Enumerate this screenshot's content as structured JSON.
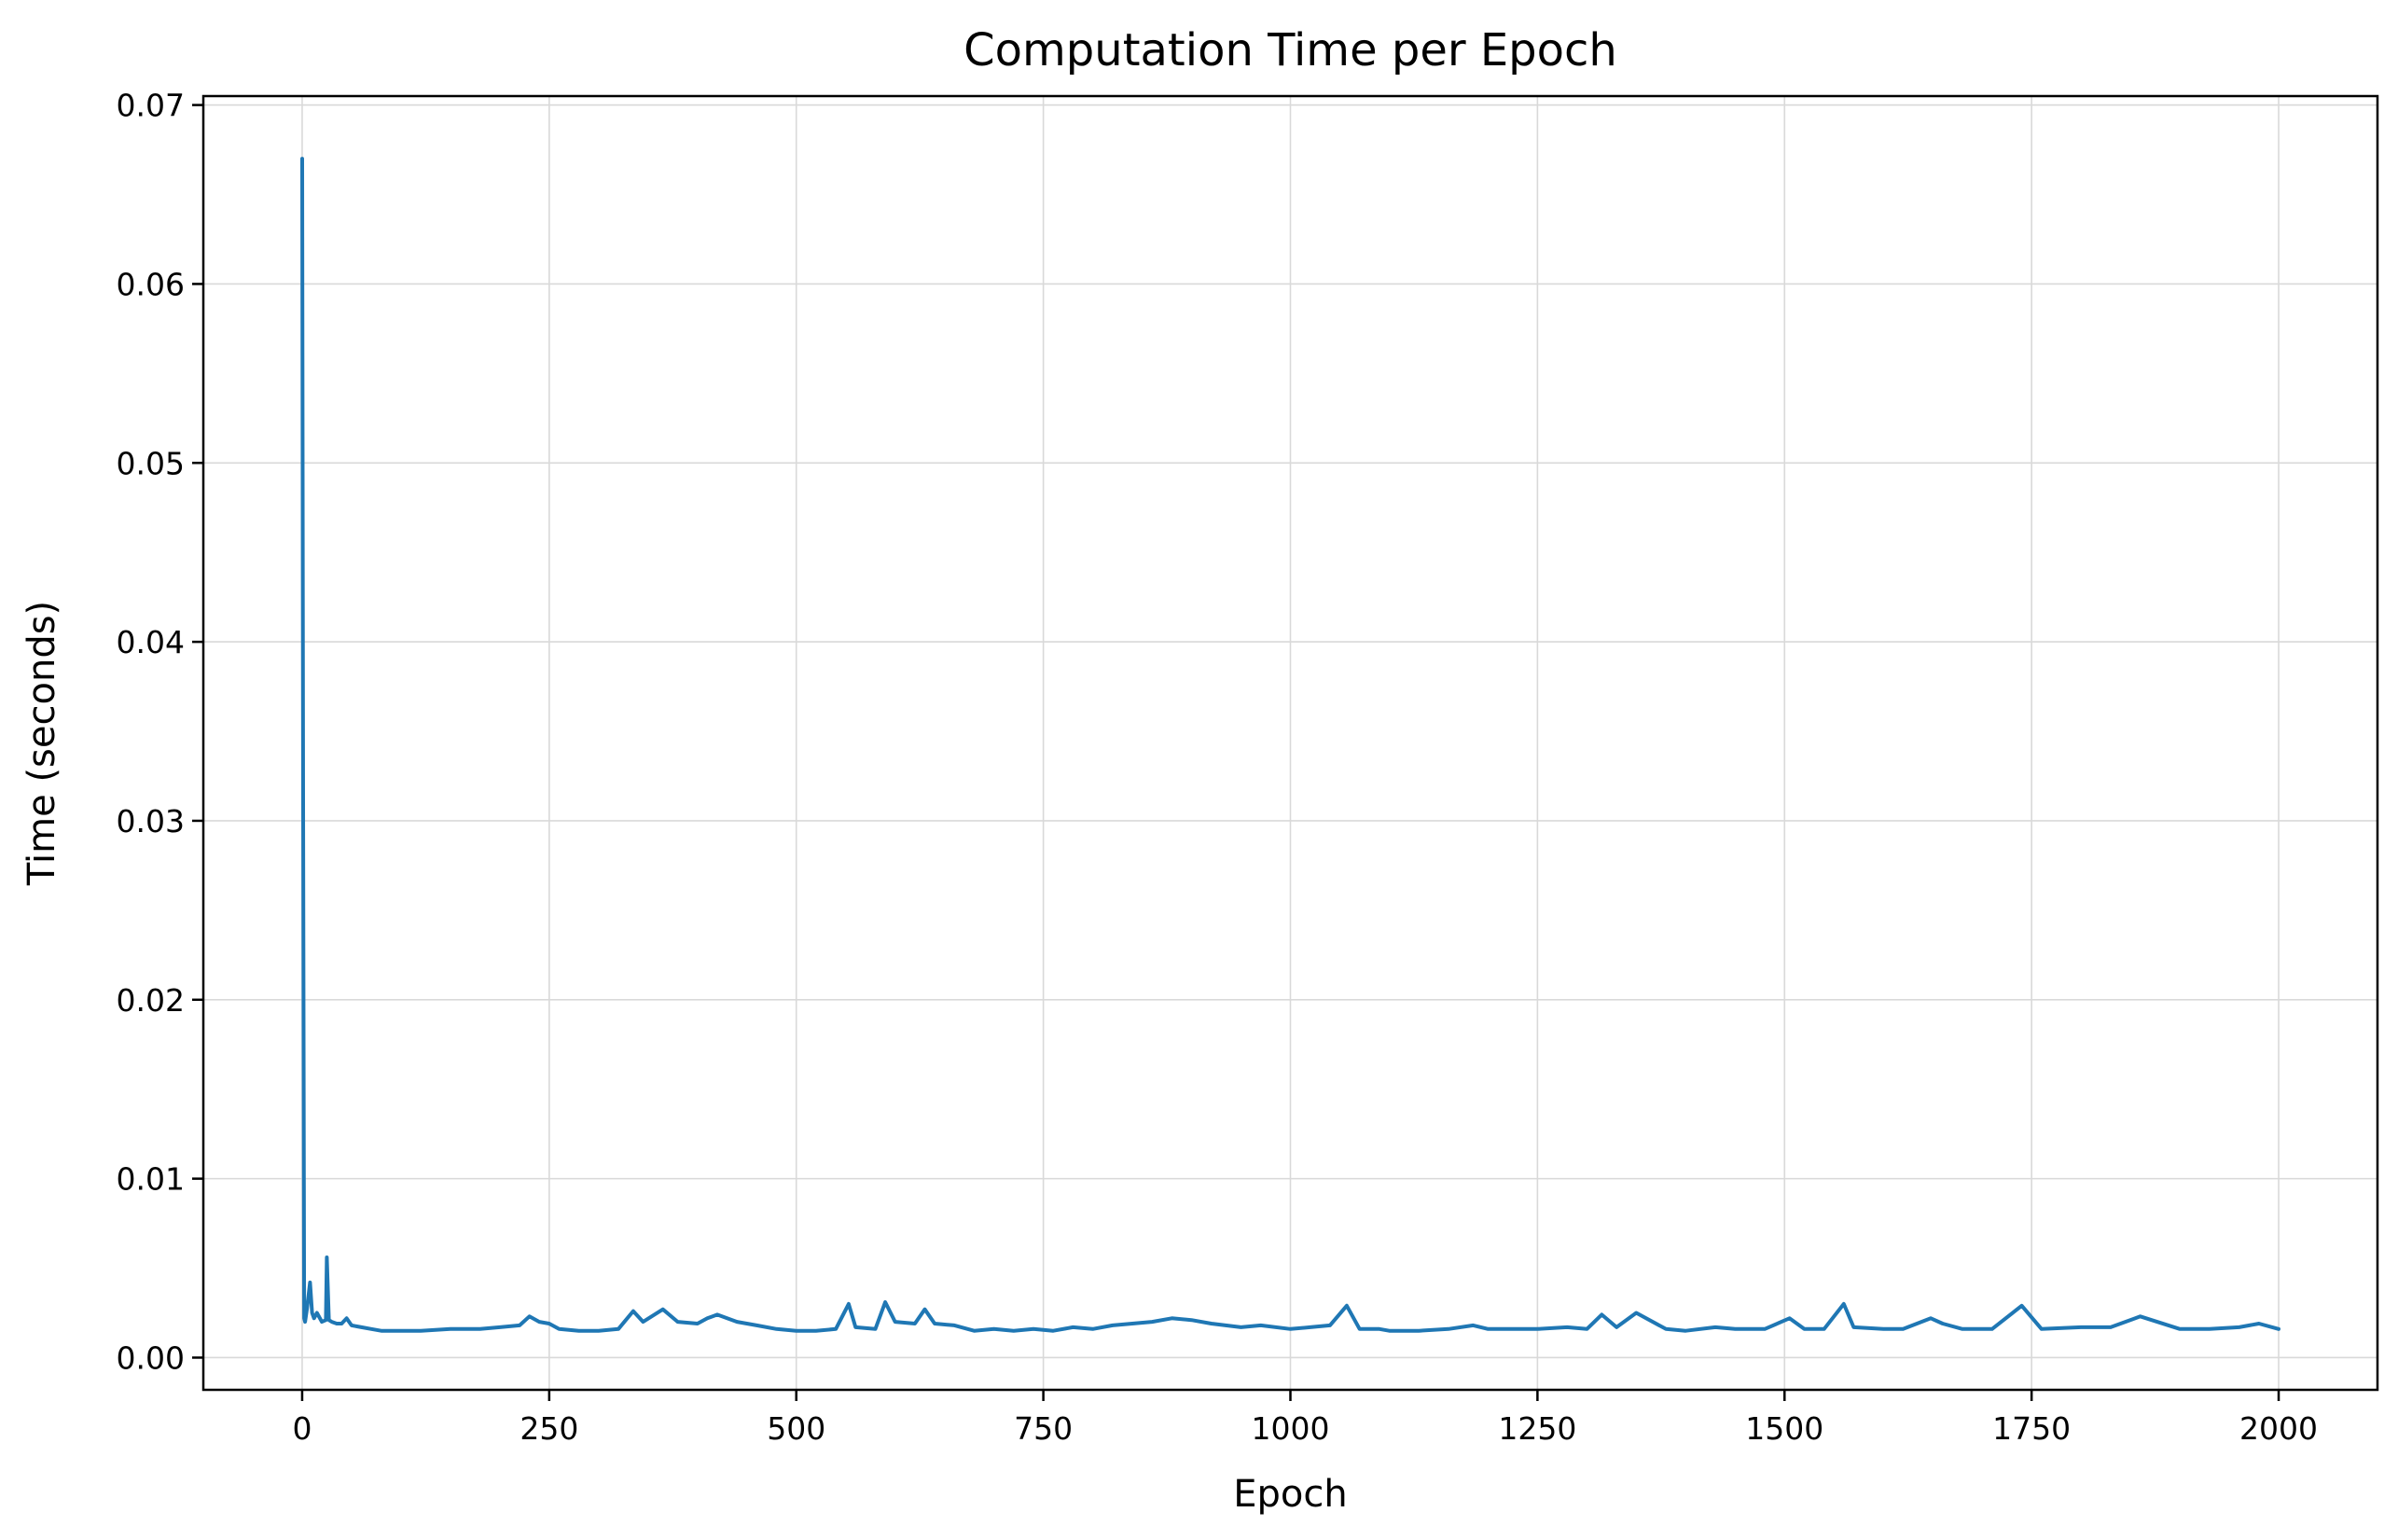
{
  "chart_data": {
    "type": "line",
    "title": "Computation Time per Epoch",
    "xlabel": "Epoch",
    "ylabel": "Time (seconds)",
    "xlim": [
      -100,
      2100
    ],
    "ylim": [
      -0.0018,
      0.0705
    ],
    "xticks": [
      0,
      250,
      500,
      750,
      1000,
      1250,
      1500,
      1750,
      2000
    ],
    "xtick_labels": [
      "0",
      "250",
      "500",
      "750",
      "1000",
      "1250",
      "1500",
      "1750",
      "2000"
    ],
    "yticks": [
      0.0,
      0.01,
      0.02,
      0.03,
      0.04,
      0.05,
      0.06,
      0.07
    ],
    "ytick_labels": [
      "0.00",
      "0.01",
      "0.02",
      "0.03",
      "0.04",
      "0.05",
      "0.06",
      "0.07"
    ],
    "grid": true,
    "line_color": "#1f77b4",
    "series": [
      {
        "x": [
          0,
          1,
          2,
          3,
          5,
          8,
          10,
          12,
          15,
          20,
          24,
          25,
          27,
          30,
          35,
          40,
          45,
          50,
          60,
          70,
          80,
          100,
          120,
          150,
          180,
          200,
          220,
          230,
          240,
          250,
          260,
          280,
          300,
          320,
          335,
          345,
          365,
          380,
          400,
          410,
          420,
          440,
          460,
          480,
          500,
          520,
          540,
          553,
          560,
          580,
          590,
          600,
          620,
          630,
          640,
          660,
          680,
          700,
          720,
          740,
          760,
          780,
          800,
          820,
          840,
          860,
          880,
          900,
          920,
          950,
          970,
          1000,
          1020,
          1040,
          1057,
          1070,
          1090,
          1100,
          1130,
          1160,
          1185,
          1200,
          1230,
          1250,
          1280,
          1300,
          1315,
          1330,
          1350,
          1380,
          1400,
          1430,
          1450,
          1480,
          1505,
          1520,
          1540,
          1560,
          1570,
          1600,
          1620,
          1648,
          1660,
          1680,
          1710,
          1740,
          1760,
          1800,
          1830,
          1860,
          1900,
          1930,
          1960,
          1980,
          2000
        ],
        "y": [
          0.067,
          0.031,
          0.0022,
          0.002,
          0.0028,
          0.0042,
          0.0025,
          0.0022,
          0.0025,
          0.002,
          0.0021,
          0.0056,
          0.0021,
          0.002,
          0.0019,
          0.0019,
          0.0022,
          0.0018,
          0.0017,
          0.0016,
          0.0015,
          0.0015,
          0.0015,
          0.0016,
          0.0016,
          0.0017,
          0.0018,
          0.0023,
          0.002,
          0.0019,
          0.0016,
          0.0015,
          0.0015,
          0.0016,
          0.0026,
          0.002,
          0.0027,
          0.002,
          0.0019,
          0.0022,
          0.0024,
          0.002,
          0.0018,
          0.0016,
          0.0015,
          0.0015,
          0.0016,
          0.003,
          0.0017,
          0.0016,
          0.0031,
          0.002,
          0.0019,
          0.0027,
          0.0019,
          0.0018,
          0.0015,
          0.0016,
          0.0015,
          0.0016,
          0.0015,
          0.0017,
          0.0016,
          0.0018,
          0.0019,
          0.002,
          0.0022,
          0.0021,
          0.0019,
          0.0017,
          0.0018,
          0.0016,
          0.0017,
          0.0018,
          0.0029,
          0.0016,
          0.0016,
          0.0015,
          0.0015,
          0.0016,
          0.0018,
          0.0016,
          0.0016,
          0.0016,
          0.0017,
          0.0016,
          0.0024,
          0.0017,
          0.0025,
          0.0016,
          0.0015,
          0.0017,
          0.0016,
          0.0016,
          0.0022,
          0.0016,
          0.0016,
          0.003,
          0.0017,
          0.0016,
          0.0016,
          0.0022,
          0.0019,
          0.0016,
          0.0016,
          0.0029,
          0.0016,
          0.0017,
          0.0017,
          0.0023,
          0.0016,
          0.0016,
          0.0017,
          0.0019,
          0.0016
        ]
      }
    ]
  }
}
